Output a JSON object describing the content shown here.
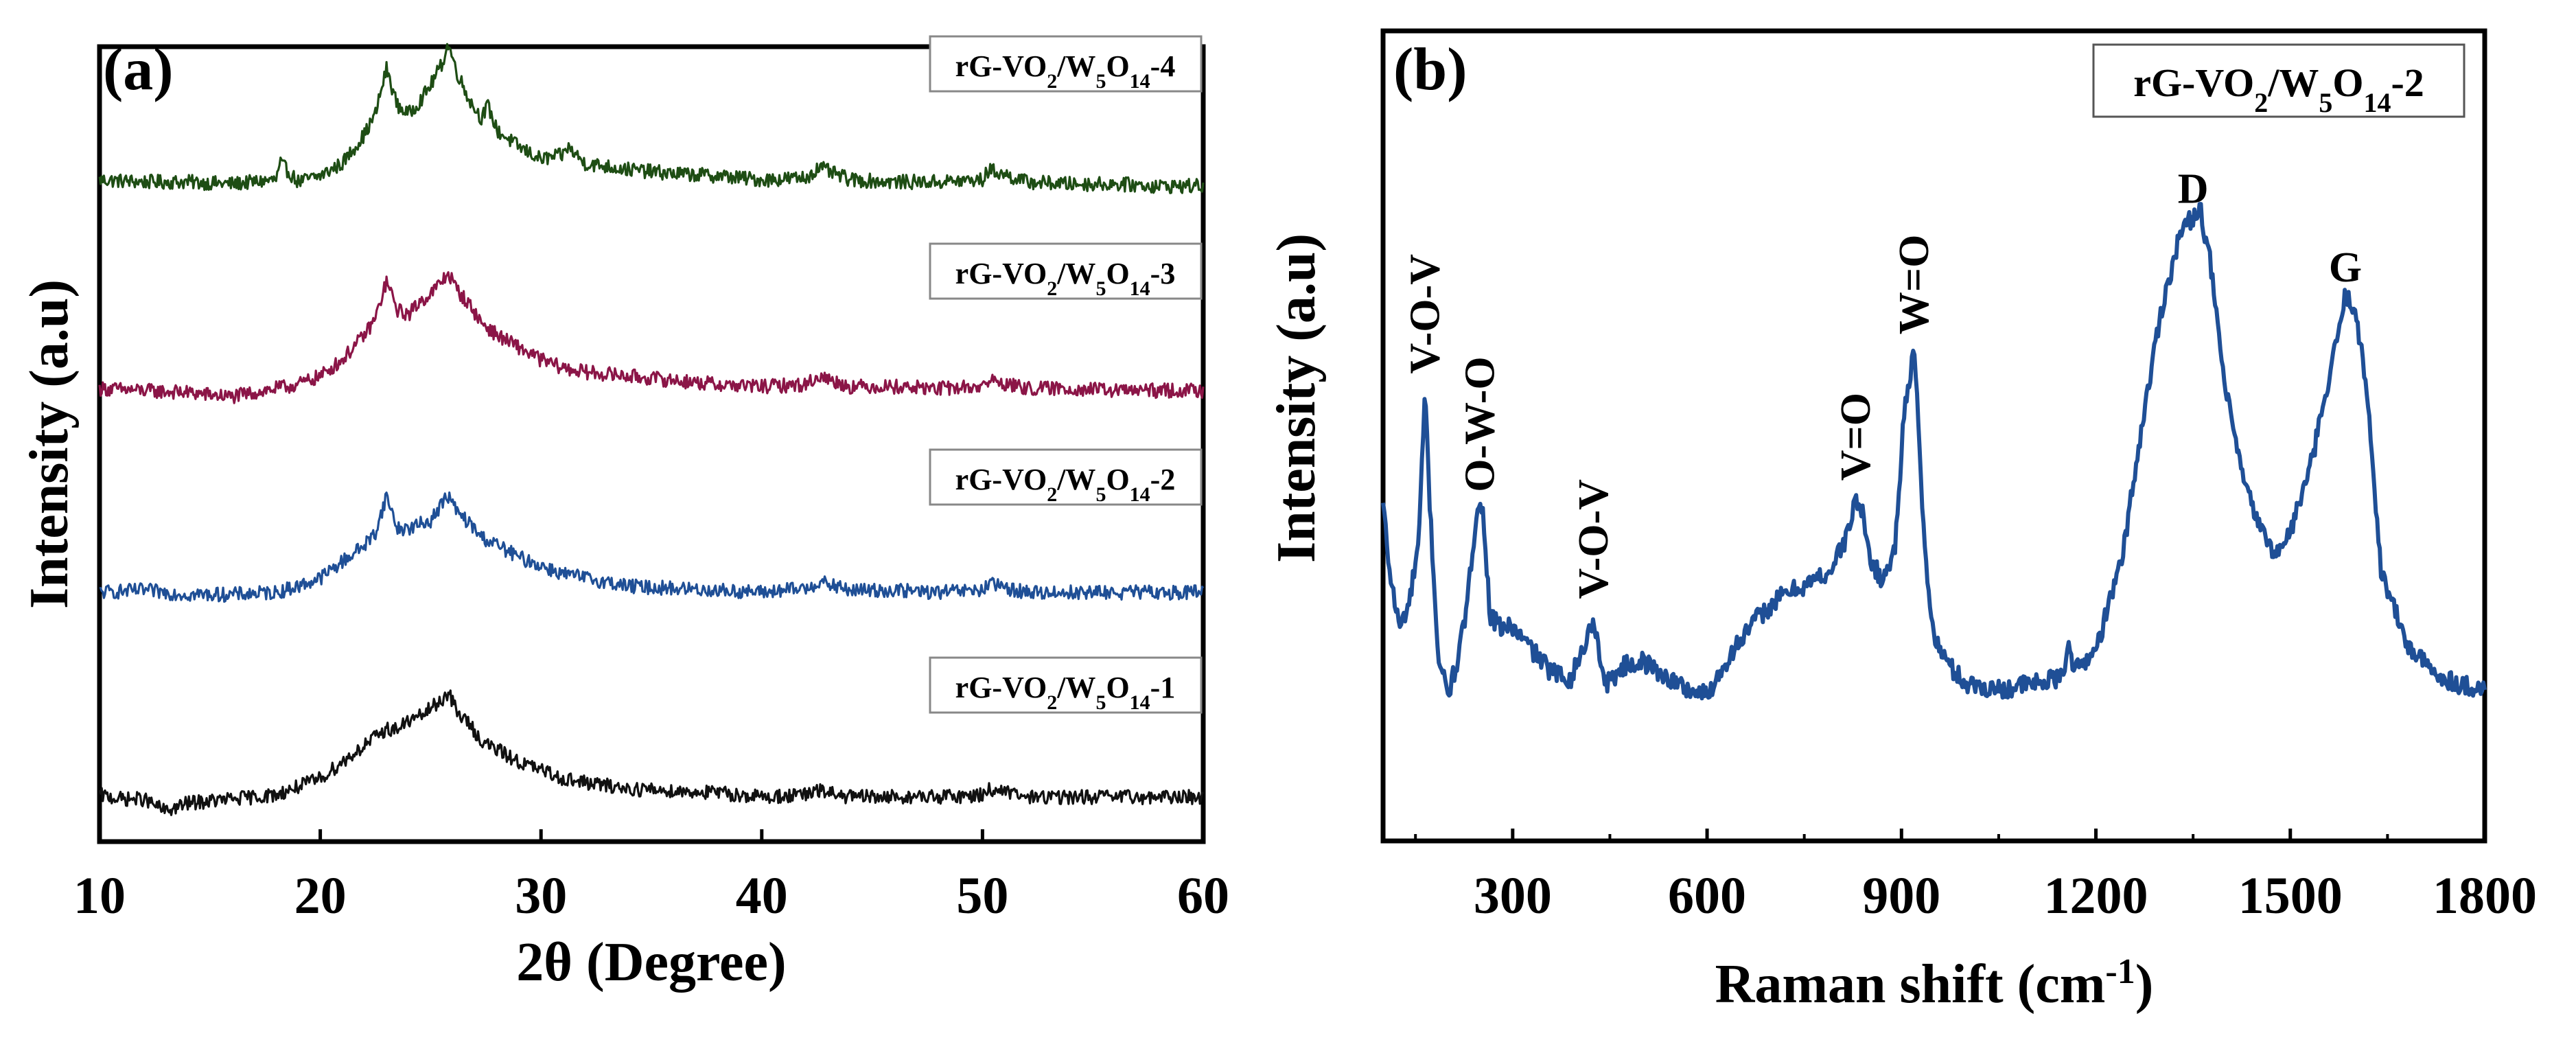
{
  "chart_data": [
    {
      "panel_label": "(a)",
      "type": "line",
      "xlabel": "2θ (Degree)",
      "ylabel": "Intensity (a.u)",
      "xlim": [
        10,
        60
      ],
      "x_ticks": [
        "10",
        "20",
        "30",
        "40",
        "50",
        "60"
      ],
      "y_ticks_shown": false,
      "grid": false,
      "legend_placement": "label beside each trace, right",
      "peak_positions_2theta": [
        18.2,
        23.0,
        25.8,
        27.6,
        31.2,
        42.6,
        50.3
      ],
      "series": [
        {
          "label_parts": [
            "rG-VO",
            "2",
            "/W",
            "5",
            "O",
            "14",
            "-4"
          ],
          "color": "#1e4d14",
          "offset": 3,
          "x": [
            10,
            12,
            14,
            16,
            18,
            18.2,
            19,
            20,
            21,
            22,
            22.5,
            23,
            23.5,
            24,
            24.5,
            25,
            25.5,
            25.8,
            26.2,
            26.8,
            27.3,
            27.6,
            28,
            29,
            30,
            31,
            31.2,
            32,
            34,
            36,
            38,
            40,
            42,
            42.6,
            44,
            46,
            48,
            50,
            50.3,
            52,
            54,
            56,
            58,
            60
          ],
          "y": [
            0.06,
            0.05,
            0.05,
            0.04,
            0.06,
            0.14,
            0.05,
            0.08,
            0.14,
            0.28,
            0.38,
            0.6,
            0.42,
            0.38,
            0.44,
            0.52,
            0.62,
            0.72,
            0.58,
            0.44,
            0.36,
            0.42,
            0.3,
            0.22,
            0.16,
            0.18,
            0.22,
            0.14,
            0.11,
            0.09,
            0.08,
            0.06,
            0.07,
            0.12,
            0.06,
            0.05,
            0.05,
            0.06,
            0.11,
            0.05,
            0.04,
            0.04,
            0.03,
            0.03
          ]
        },
        {
          "label_parts": [
            "rG-VO",
            "2",
            "/W",
            "5",
            "O",
            "14",
            "-3"
          ],
          "color": "#8b1547",
          "offset": 2,
          "x": [
            10,
            12,
            14,
            16,
            18,
            19,
            20,
            21,
            22,
            22.5,
            23,
            23.5,
            24,
            24.5,
            25,
            25.5,
            25.8,
            26.2,
            26.8,
            27.3,
            28,
            29,
            30,
            31,
            32,
            34,
            36,
            38,
            40,
            42,
            42.6,
            44,
            46,
            48,
            50,
            50.3,
            52,
            54,
            56,
            58,
            60
          ],
          "y": [
            0.04,
            0.03,
            0.02,
            0.0,
            0.04,
            0.06,
            0.1,
            0.18,
            0.3,
            0.38,
            0.56,
            0.42,
            0.4,
            0.46,
            0.5,
            0.56,
            0.6,
            0.52,
            0.44,
            0.36,
            0.3,
            0.24,
            0.18,
            0.14,
            0.12,
            0.1,
            0.08,
            0.06,
            0.05,
            0.06,
            0.1,
            0.05,
            0.05,
            0.04,
            0.05,
            0.08,
            0.04,
            0.04,
            0.03,
            0.03,
            0.03
          ]
        },
        {
          "label_parts": [
            "rG-VO",
            "2",
            "/W",
            "5",
            "O",
            "14",
            "-2"
          ],
          "color": "#1f4f96",
          "offset": 1,
          "x": [
            10,
            12,
            14,
            16,
            18,
            19,
            20,
            21,
            22,
            22.5,
            23,
            23.5,
            24,
            24.5,
            25,
            25.5,
            25.8,
            26.2,
            26.8,
            27.3,
            28,
            29,
            30,
            31,
            32,
            34,
            36,
            38,
            40,
            42,
            42.6,
            44,
            46,
            48,
            50,
            50.3,
            52,
            54,
            56,
            58,
            60
          ],
          "y": [
            0.03,
            0.04,
            0.02,
            0.02,
            0.03,
            0.06,
            0.1,
            0.18,
            0.26,
            0.32,
            0.5,
            0.34,
            0.34,
            0.36,
            0.38,
            0.46,
            0.5,
            0.42,
            0.36,
            0.3,
            0.26,
            0.2,
            0.16,
            0.12,
            0.1,
            0.06,
            0.05,
            0.04,
            0.03,
            0.05,
            0.08,
            0.04,
            0.04,
            0.03,
            0.04,
            0.07,
            0.03,
            0.03,
            0.03,
            0.03,
            0.03
          ]
        },
        {
          "label_parts": [
            "rG-VO",
            "2",
            "/W",
            "5",
            "O",
            "14",
            "-1"
          ],
          "color": "#111111",
          "offset": 0,
          "x": [
            10,
            11,
            12,
            13,
            14,
            16,
            18,
            19,
            20,
            21,
            22,
            22.5,
            23,
            23.5,
            24,
            24.5,
            25,
            25.5,
            25.8,
            26.2,
            26.8,
            27.3,
            28,
            29,
            30,
            31,
            32,
            34,
            36,
            38,
            40,
            42,
            42.6,
            44,
            46,
            48,
            50,
            50.3,
            52,
            54,
            56,
            58,
            60
          ],
          "y": [
            0.04,
            0.02,
            0.02,
            -0.04,
            0.0,
            0.02,
            0.04,
            0.08,
            0.12,
            0.2,
            0.28,
            0.32,
            0.36,
            0.36,
            0.4,
            0.42,
            0.46,
            0.5,
            0.54,
            0.44,
            0.38,
            0.3,
            0.26,
            0.2,
            0.16,
            0.12,
            0.1,
            0.07,
            0.06,
            0.05,
            0.03,
            0.04,
            0.06,
            0.03,
            0.03,
            0.03,
            0.04,
            0.07,
            0.03,
            0.03,
            0.03,
            0.03,
            0.03
          ]
        }
      ]
    },
    {
      "panel_label": "(b)",
      "type": "line",
      "xlabel": "Raman shift (cm",
      "xlabel_sup": "-1",
      "xlabel_end": ")",
      "ylabel": "Intensity (a.u)",
      "xlim": [
        100,
        1800
      ],
      "x_ticks": [
        300,
        600,
        900,
        1200,
        1500,
        1800
      ],
      "y_ticks_shown": false,
      "grid": false,
      "legend_placement": "top-right",
      "legend_parts": [
        "rG-VO",
        "2",
        "/W",
        "5",
        "O",
        "14",
        "-2"
      ],
      "series": [
        {
          "name": "rG-VO2/W5O14-2",
          "color": "#1f4f96",
          "x": [
            100,
            110,
            125,
            140,
            155,
            165,
            172,
            185,
            200,
            215,
            230,
            245,
            255,
            265,
            280,
            300,
            330,
            360,
            390,
            415,
            425,
            435,
            445,
            470,
            500,
            540,
            570,
            600,
            640,
            680,
            720,
            760,
            790,
            815,
            830,
            840,
            850,
            870,
            890,
            905,
            920,
            935,
            950,
            975,
            1000,
            1050,
            1100,
            1150,
            1158,
            1166,
            1200,
            1240,
            1270,
            1300,
            1330,
            1350,
            1360,
            1375,
            1400,
            1430,
            1460,
            1480,
            1500,
            1530,
            1560,
            1585,
            1600,
            1620,
            1640,
            1680,
            1720,
            1760,
            1800
          ],
          "y": [
            0.42,
            0.3,
            0.2,
            0.24,
            0.35,
            0.62,
            0.42,
            0.15,
            0.08,
            0.14,
            0.24,
            0.42,
            0.4,
            0.22,
            0.2,
            0.2,
            0.16,
            0.12,
            0.11,
            0.18,
            0.22,
            0.14,
            0.1,
            0.13,
            0.14,
            0.11,
            0.09,
            0.08,
            0.16,
            0.22,
            0.26,
            0.28,
            0.3,
            0.36,
            0.43,
            0.4,
            0.33,
            0.28,
            0.34,
            0.6,
            0.69,
            0.35,
            0.18,
            0.13,
            0.1,
            0.09,
            0.1,
            0.11,
            0.19,
            0.12,
            0.16,
            0.32,
            0.55,
            0.76,
            0.9,
            0.93,
            0.95,
            0.86,
            0.62,
            0.45,
            0.36,
            0.33,
            0.37,
            0.48,
            0.64,
            0.79,
            0.77,
            0.6,
            0.3,
            0.17,
            0.12,
            0.1,
            0.09
          ]
        }
      ],
      "annotations": [
        {
          "text": "V-O-V",
          "x": 165
        },
        {
          "text": "O-W-O",
          "x": 250
        },
        {
          "text": "V-O-V",
          "x": 425
        },
        {
          "text": "V=O",
          "x": 830
        },
        {
          "text": "W=O",
          "x": 920
        },
        {
          "text": "D",
          "x": 1350
        },
        {
          "text": "G",
          "x": 1585
        }
      ]
    }
  ]
}
